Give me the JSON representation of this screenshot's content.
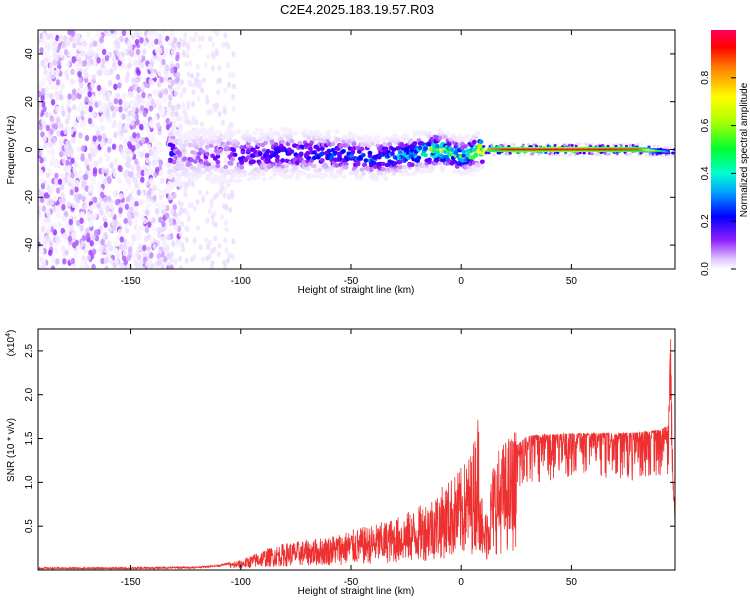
{
  "title": "C2E4.2025.183.19.57.R03",
  "chart_data": [
    {
      "type": "heatmap",
      "xlabel": "Height of straight line (km)",
      "ylabel": "Frequency (Hz)",
      "xlim": [
        -192,
        97
      ],
      "ylim": [
        -50,
        50
      ],
      "xticks": [
        -150,
        -100,
        -50,
        0,
        50
      ],
      "yticks": [
        -40,
        -20,
        0,
        20,
        40
      ],
      "colorbar": {
        "label": "Normalized spectral amplitude",
        "range": [
          0,
          1
        ],
        "ticks": [
          0.0,
          0.2,
          0.4,
          0.6,
          0.8
        ],
        "colormap": [
          "#ffffff",
          "#e0c8ff",
          "#8000ff",
          "#0000ff",
          "#00d0ff",
          "#00ff60",
          "#c0ff00",
          "#ffff00",
          "#ff8000",
          "#ff0000",
          "#ff0060"
        ]
      },
      "ridge": [
        {
          "x": -130,
          "f": -3.0,
          "amp": 0.15
        },
        {
          "x": -110,
          "f": -2.5,
          "amp": 0.22
        },
        {
          "x": -90,
          "f": -2.0,
          "amp": 0.28
        },
        {
          "x": -70,
          "f": -1.5,
          "amp": 0.32
        },
        {
          "x": -50,
          "f": -2.5,
          "amp": 0.35
        },
        {
          "x": -40,
          "f": -4.0,
          "amp": 0.38
        },
        {
          "x": -20,
          "f": -1.5,
          "amp": 0.45
        },
        {
          "x": -10,
          "f": 0.0,
          "amp": 0.6
        },
        {
          "x": 0,
          "f": -3.0,
          "amp": 0.5
        },
        {
          "x": 10,
          "f": 0.0,
          "amp": 0.75
        },
        {
          "x": 20,
          "f": 0.0,
          "amp": 0.9
        },
        {
          "x": 50,
          "f": 0.0,
          "amp": 0.95
        },
        {
          "x": 80,
          "f": 0.0,
          "amp": 0.85
        },
        {
          "x": 95,
          "f": -1.0,
          "amp": 0.3
        }
      ]
    },
    {
      "type": "line",
      "xlabel": "Height of straight line (km)",
      "ylabel": "SNR (10 * v/v)",
      "y_multiplier": "(x10",
      "y_multiplier_exp": "4",
      "y_multiplier_close": ")",
      "xlim": [
        -192,
        97
      ],
      "ylim": [
        0,
        2.75
      ],
      "xticks": [
        -150,
        -100,
        -50,
        0,
        50
      ],
      "yticks": [
        0.5,
        1.0,
        1.5,
        2.0,
        2.5
      ],
      "color": "#ee3030",
      "series": [
        {
          "x": [
            -192,
            -150,
            -120,
            -110,
            -100,
            -90,
            -80,
            -70,
            -60,
            -50,
            -40,
            -30,
            -20,
            -10,
            0,
            5,
            8,
            10,
            15,
            20,
            25,
            30,
            40,
            50,
            60,
            70,
            80,
            90,
            94,
            95,
            96,
            97
          ],
          "y": [
            0.02,
            0.02,
            0.03,
            0.05,
            0.1,
            0.2,
            0.27,
            0.3,
            0.34,
            0.4,
            0.45,
            0.52,
            0.62,
            0.8,
            1.02,
            1.2,
            1.65,
            0.45,
            1.15,
            1.3,
            1.42,
            1.53,
            1.55,
            1.56,
            1.56,
            1.56,
            1.57,
            1.6,
            1.65,
            2.7,
            1.2,
            0.6
          ]
        }
      ]
    }
  ]
}
